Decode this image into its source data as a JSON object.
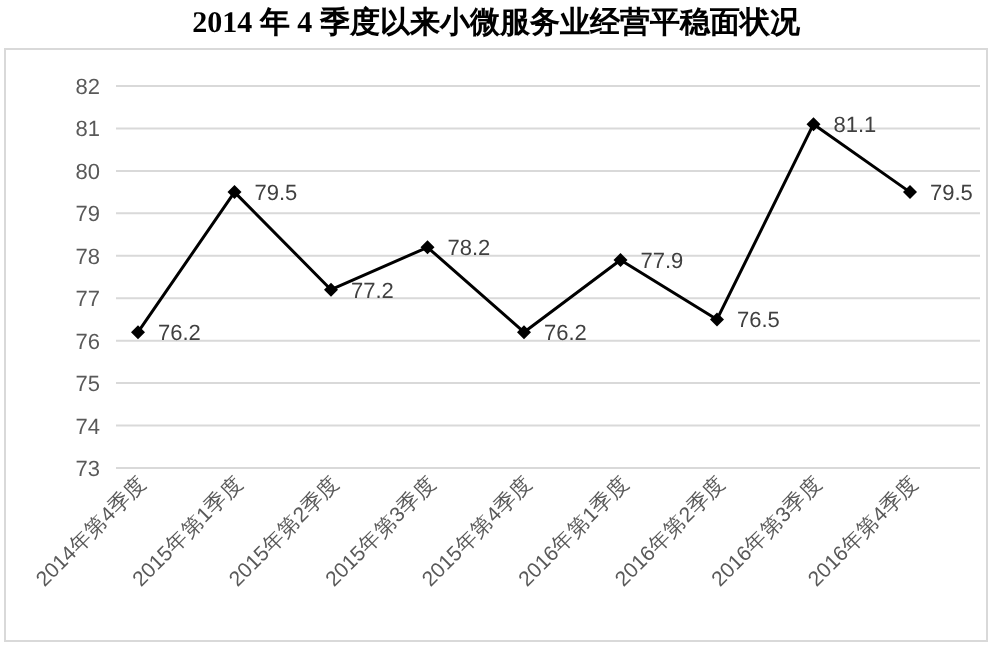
{
  "chart_data": {
    "type": "line",
    "title": "2014 年 4 季度以来小微服务业经营平稳面状况",
    "categories": [
      "2014年第4季度",
      "2015年第1季度",
      "2015年第2季度",
      "2015年第3季度",
      "2015年第4季度",
      "2016年第1季度",
      "2016年第2季度",
      "2016年第3季度",
      "2016年第4季度"
    ],
    "series": [
      {
        "color": "#000000",
        "values": [
          76.2,
          79.5,
          77.2,
          78.2,
          76.2,
          77.9,
          76.5,
          81.1,
          79.5
        ]
      }
    ],
    "ylim": [
      73,
      82
    ],
    "yticks": [
      73,
      74,
      75,
      76,
      77,
      78,
      79,
      80,
      81,
      82
    ],
    "grid": "y",
    "marker": "diamond",
    "line_style": "solid",
    "data_labels": true
  }
}
